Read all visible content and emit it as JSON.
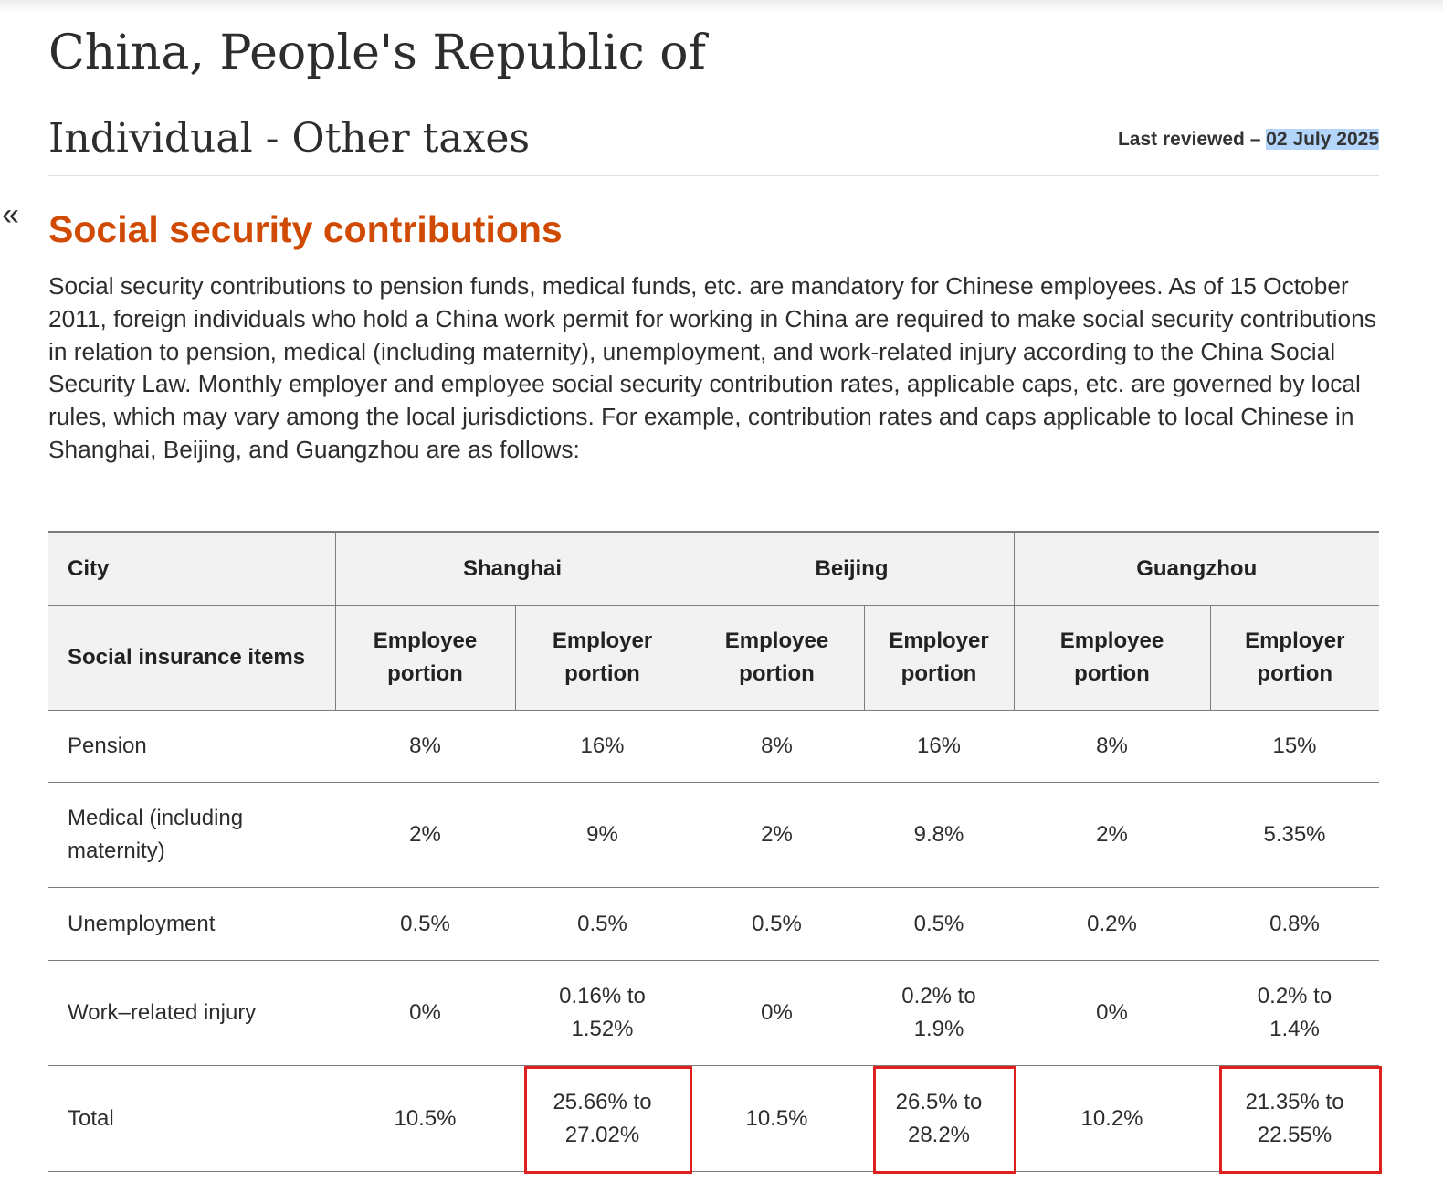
{
  "header": {
    "title": "China, People's Republic of",
    "subtitle": "Individual - Other taxes",
    "last_reviewed_label": "Last reviewed –",
    "last_reviewed_date": "02 July 2025"
  },
  "section": {
    "back_icon": "«",
    "heading": "Social security contributions",
    "paragraph": "Social security contributions to pension funds, medical funds, etc. are mandatory for Chinese employees. As of 15 October 2011, foreign individuals who hold a China work permit for working in China are required to make social security contributions in relation to pension, medical (including maternity), unemployment, and work-related injury according to the China Social Security Law. Monthly employer and employee social security contribution rates, applicable caps, etc. are governed by local rules, which may vary among the local jurisdictions. For example, contribution rates and caps applicable to local Chinese in Shanghai, Beijing, and Guangzhou are as follows:"
  },
  "table": {
    "city_label": "City",
    "cities": [
      "Shanghai",
      "Beijing",
      "Guangzhou"
    ],
    "items_label": "Social insurance items",
    "portions": [
      "Employee portion",
      "Employer portion",
      "Employee portion",
      "Employer portion",
      "Employee portion",
      "Employer portion"
    ],
    "rows": [
      [
        "Pension",
        "8%",
        "16%",
        "8%",
        "16%",
        "8%",
        "15%"
      ],
      [
        "Medical (including maternity)",
        "2%",
        "9%",
        "2%",
        "9.8%",
        "2%",
        "5.35%"
      ],
      [
        "Unemployment",
        "0.5%",
        "0.5%",
        "0.5%",
        "0.5%",
        "0.2%",
        "0.8%"
      ],
      [
        "Work–related injury",
        "0%",
        "0.16% to 1.52%",
        "0%",
        "0.2% to 1.9%",
        "0%",
        "0.2% to 1.4%"
      ],
      [
        "Total",
        "10.5%",
        "25.66% to 27.02%",
        "10.5%",
        "26.5% to 28.2%",
        "10.2%",
        "21.35% to 22.55%"
      ]
    ]
  }
}
